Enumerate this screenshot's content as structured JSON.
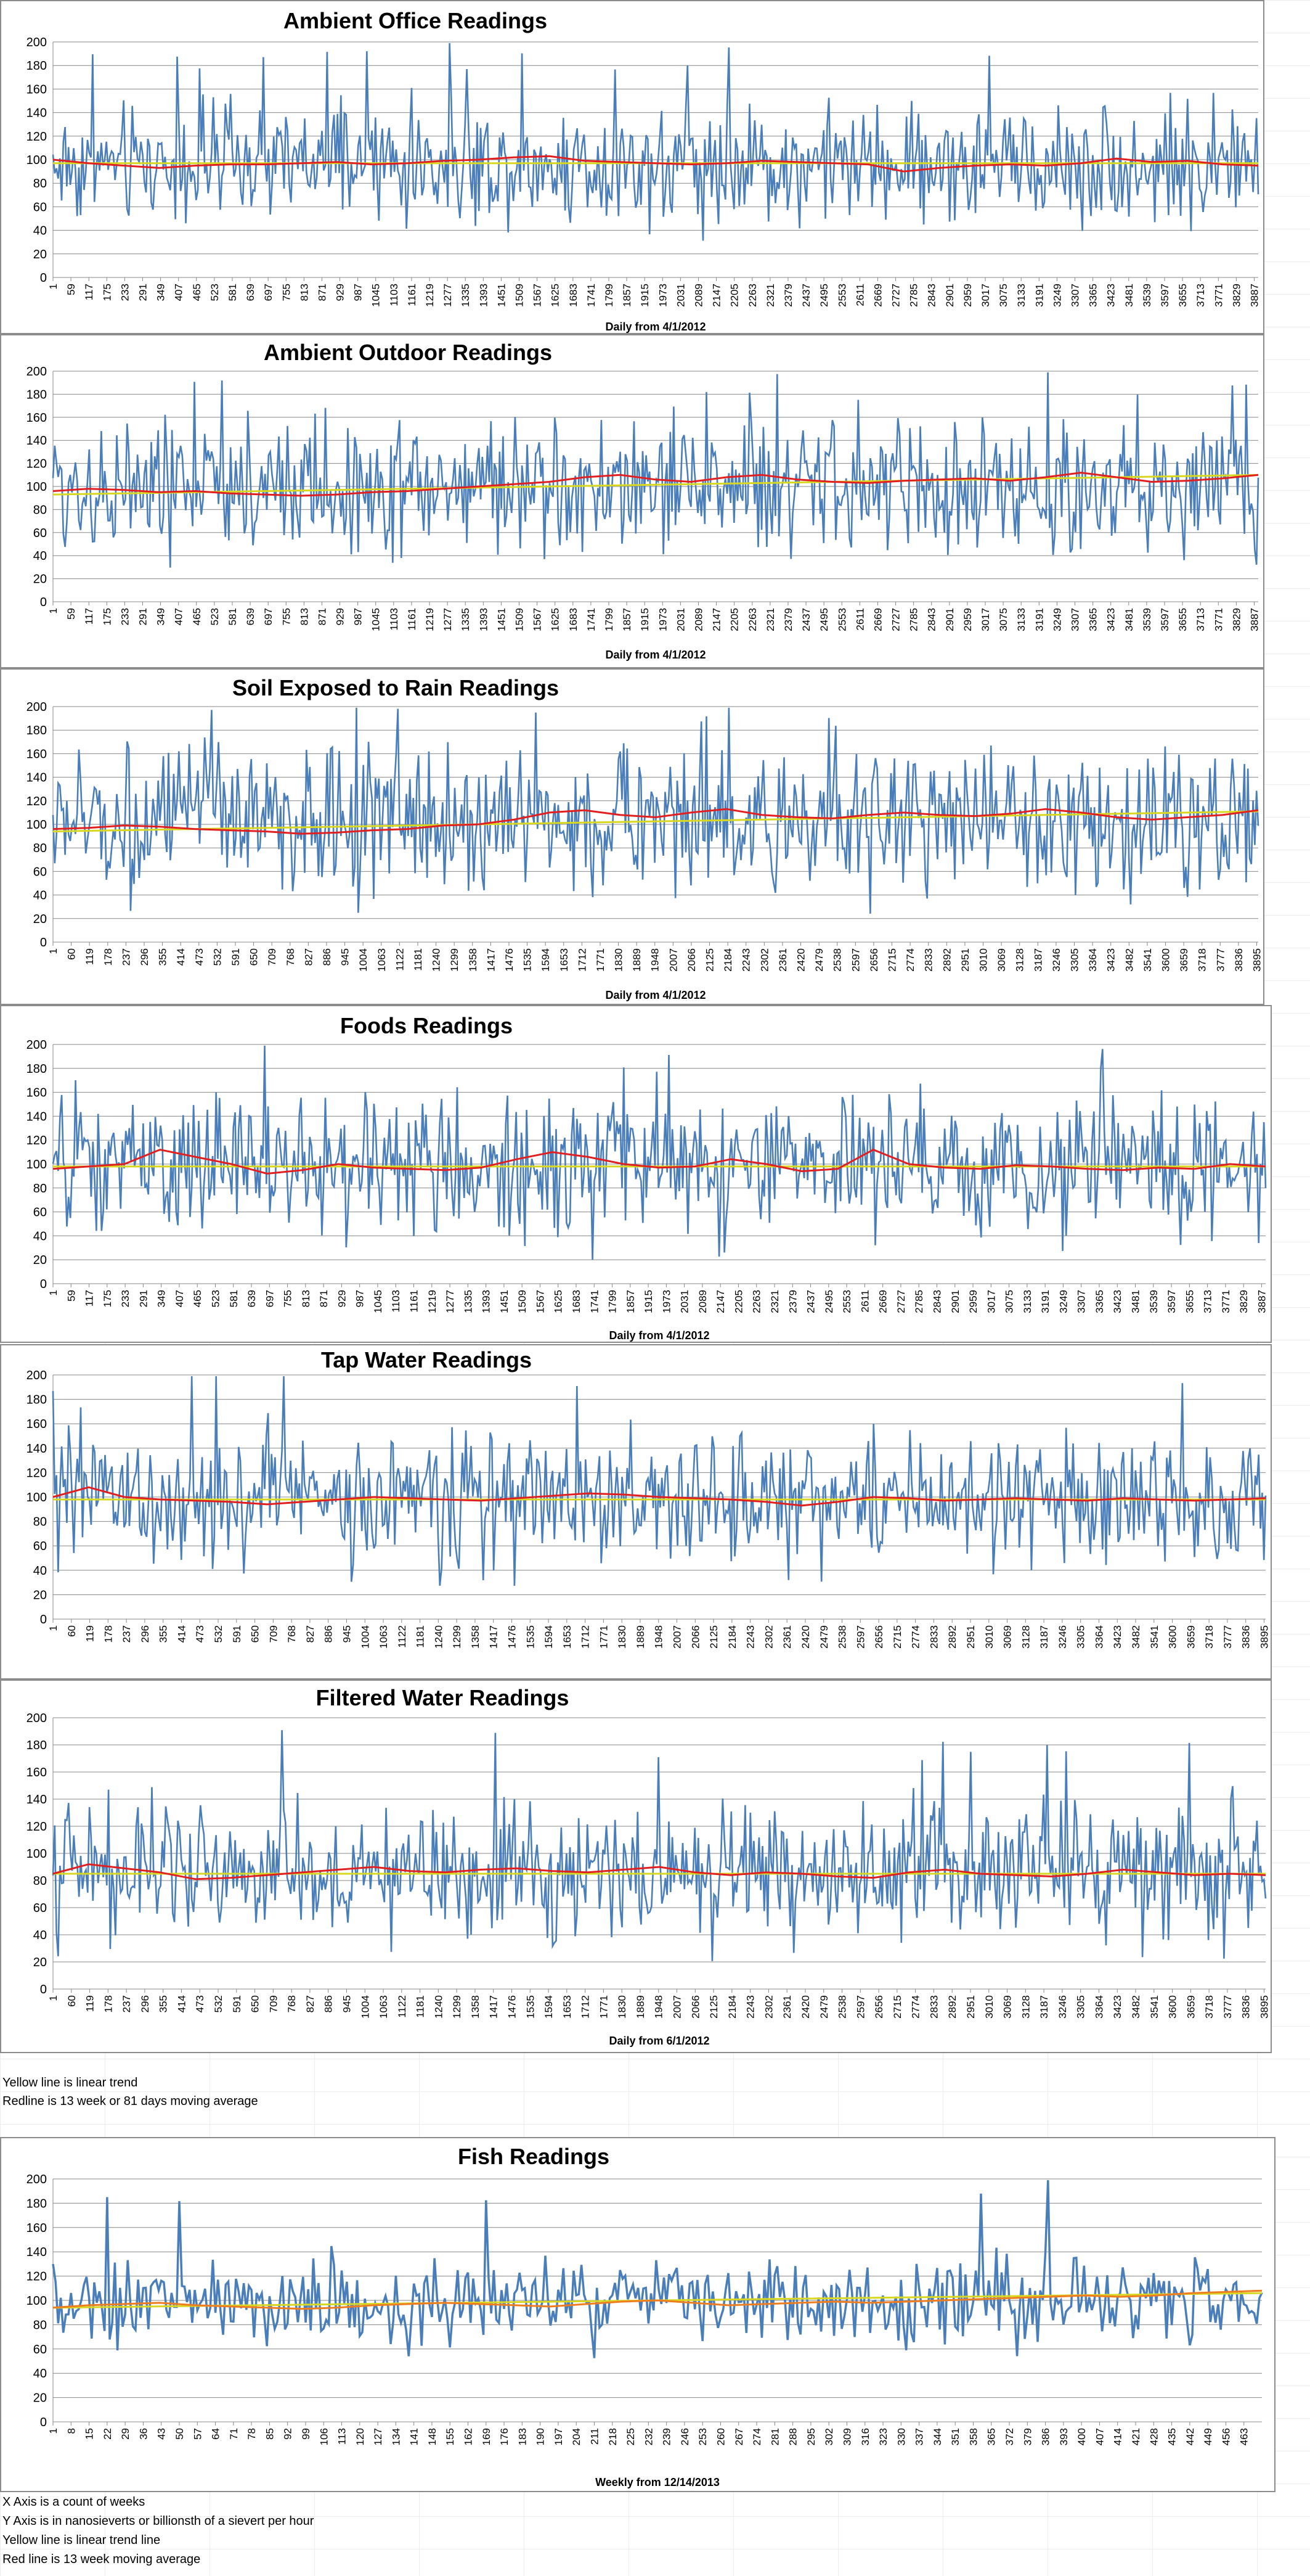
{
  "notes_mid": [
    "Yellow line is linear trend",
    "Redline is 13 week or 81 days moving average"
  ],
  "notes_bottom": [
    "X Axis is a count of weeks",
    "Y Axis is in nanosieverts or billionsth of a sievert per hour",
    "Yellow line is linear trend line",
    "Red line is 13 week moving average"
  ],
  "colors": {
    "series": "#4a7ebb",
    "moving_average": "#e02020",
    "moving_average_fish": "#ee7d20",
    "trend": "#d8d820",
    "grid": "#888888"
  },
  "chart_data": [
    {
      "type": "line",
      "title": "Ambient Office Readings",
      "xlabel": "Daily from 4/1/2012",
      "ylim": [
        0,
        200
      ],
      "yticks": [
        0,
        20,
        40,
        60,
        80,
        100,
        120,
        140,
        160,
        180,
        200
      ],
      "x_ticks": [
        1,
        59,
        117,
        175,
        233,
        291,
        349,
        407,
        465,
        523,
        581,
        639,
        697,
        755,
        813,
        871,
        929,
        987,
        1045,
        1103,
        1161,
        1219,
        1277,
        1335,
        1393,
        1451,
        1509,
        1567,
        1625,
        1683,
        1741,
        1799,
        1857,
        1915,
        1973,
        2031,
        2089,
        2147,
        2205,
        2263,
        2321,
        2379,
        2437,
        2495,
        2553,
        2611,
        2669,
        2727,
        2785,
        2843,
        2901,
        2959,
        3017,
        3075,
        3133,
        3191,
        3249,
        3307,
        3365,
        3423,
        3481,
        3539,
        3597,
        3655,
        3713,
        3771,
        3829,
        3887
      ],
      "x_max": 3900,
      "grid": true,
      "series": [
        {
          "role": "readings",
          "mean": 96,
          "spread": 22,
          "n": 700
        },
        {
          "role": "moving_average",
          "values": [
            100,
            97,
            95,
            93,
            95,
            96,
            96,
            97,
            98,
            96,
            97,
            99,
            100,
            102,
            103,
            99,
            98,
            97,
            96,
            97,
            99,
            98,
            97,
            96,
            90,
            93,
            95,
            96,
            95,
            97,
            101,
            98,
            99,
            96,
            95
          ]
        },
        {
          "role": "trend",
          "values": [
            97,
            97
          ]
        }
      ]
    },
    {
      "type": "line",
      "title": "Ambient Outdoor Readings",
      "xlabel": "Daily from 4/1/2012",
      "ylim": [
        0,
        200
      ],
      "yticks": [
        0,
        20,
        40,
        60,
        80,
        100,
        120,
        140,
        160,
        180,
        200
      ],
      "x_ticks": [
        1,
        59,
        117,
        175,
        233,
        291,
        349,
        407,
        465,
        523,
        581,
        639,
        697,
        755,
        813,
        871,
        929,
        987,
        1045,
        1103,
        1161,
        1219,
        1277,
        1335,
        1393,
        1451,
        1509,
        1567,
        1625,
        1683,
        1741,
        1799,
        1857,
        1915,
        1973,
        2031,
        2089,
        2147,
        2205,
        2263,
        2321,
        2379,
        2437,
        2495,
        2553,
        2611,
        2669,
        2727,
        2785,
        2843,
        2901,
        2959,
        3017,
        3075,
        3133,
        3191,
        3249,
        3307,
        3365,
        3423,
        3481,
        3539,
        3597,
        3655,
        3713,
        3771,
        3829,
        3887
      ],
      "x_max": 3900,
      "grid": true,
      "series": [
        {
          "role": "readings",
          "mean": 100,
          "spread": 26,
          "n": 700
        },
        {
          "role": "moving_average",
          "values": [
            96,
            98,
            97,
            95,
            96,
            94,
            93,
            92,
            93,
            95,
            96,
            98,
            100,
            102,
            104,
            108,
            110,
            106,
            104,
            108,
            110,
            106,
            104,
            103,
            105,
            106,
            107,
            105,
            108,
            112,
            108,
            104,
            105,
            107,
            110
          ]
        },
        {
          "role": "trend",
          "values": [
            93,
            110
          ]
        }
      ]
    },
    {
      "type": "line",
      "title": "Soil Exposed to Rain Readings",
      "xlabel": "Daily from 4/1/2012",
      "ylim": [
        0,
        200
      ],
      "yticks": [
        0,
        20,
        40,
        60,
        80,
        100,
        120,
        140,
        160,
        180,
        200
      ],
      "x_ticks": [
        1,
        60,
        119,
        178,
        237,
        296,
        355,
        414,
        473,
        532,
        591,
        650,
        709,
        768,
        827,
        886,
        945,
        1004,
        1063,
        1122,
        1181,
        1240,
        1299,
        1358,
        1417,
        1476,
        1535,
        1594,
        1653,
        1712,
        1771,
        1830,
        1889,
        1948,
        2007,
        2066,
        2125,
        2184,
        2243,
        2302,
        2361,
        2420,
        2479,
        2538,
        2597,
        2656,
        2715,
        2774,
        2833,
        2892,
        2951,
        3010,
        3069,
        3128,
        3187,
        3246,
        3305,
        3364,
        3423,
        3482,
        3541,
        3600,
        3659,
        3718,
        3777,
        3836,
        3895
      ],
      "x_max": 3900,
      "grid": true,
      "series": [
        {
          "role": "readings",
          "mean": 103,
          "spread": 27,
          "n": 700
        },
        {
          "role": "moving_average",
          "values": [
            96,
            97,
            99,
            98,
            96,
            95,
            94,
            92,
            93,
            95,
            96,
            99,
            100,
            104,
            110,
            112,
            108,
            106,
            110,
            113,
            108,
            106,
            105,
            108,
            110,
            108,
            107,
            109,
            113,
            110,
            106,
            104,
            106,
            108,
            112
          ]
        },
        {
          "role": "trend",
          "values": [
            94,
            111
          ]
        }
      ]
    },
    {
      "type": "line",
      "title": "Foods Readings",
      "xlabel": "Daily from 4/1/2012",
      "ylim": [
        0,
        200
      ],
      "yticks": [
        0,
        20,
        40,
        60,
        80,
        100,
        120,
        140,
        160,
        180,
        200
      ],
      "x_ticks": [
        1,
        59,
        117,
        175,
        233,
        291,
        349,
        407,
        465,
        523,
        581,
        639,
        697,
        755,
        813,
        871,
        929,
        987,
        1045,
        1103,
        1161,
        1219,
        1277,
        1335,
        1393,
        1451,
        1509,
        1567,
        1625,
        1683,
        1741,
        1799,
        1857,
        1915,
        1973,
        2031,
        2089,
        2147,
        2205,
        2263,
        2321,
        2379,
        2437,
        2495,
        2553,
        2611,
        2669,
        2727,
        2785,
        2843,
        2901,
        2959,
        3017,
        3075,
        3133,
        3191,
        3249,
        3307,
        3365,
        3423,
        3481,
        3539,
        3597,
        3655,
        3713,
        3771,
        3829,
        3887
      ],
      "x_max": 3900,
      "grid": true,
      "series": [
        {
          "role": "readings",
          "mean": 98,
          "spread": 26,
          "n": 700
        },
        {
          "role": "moving_average",
          "values": [
            96,
            98,
            100,
            112,
            106,
            100,
            92,
            95,
            100,
            97,
            96,
            95,
            97,
            104,
            110,
            106,
            100,
            97,
            98,
            104,
            100,
            94,
            96,
            112,
            100,
            97,
            96,
            99,
            98,
            96,
            95,
            97,
            96,
            100,
            98
          ]
        },
        {
          "role": "trend",
          "values": [
            98,
            98
          ]
        }
      ]
    },
    {
      "type": "line",
      "title": "Tap Water Readings",
      "xlabel": "",
      "ylim": [
        0,
        200
      ],
      "yticks": [
        0,
        20,
        40,
        60,
        80,
        100,
        120,
        140,
        160,
        180,
        200
      ],
      "x_ticks": [
        1,
        60,
        119,
        178,
        237,
        296,
        355,
        414,
        473,
        532,
        591,
        650,
        709,
        768,
        827,
        886,
        945,
        1004,
        1063,
        1122,
        1181,
        1240,
        1299,
        1358,
        1417,
        1476,
        1535,
        1594,
        1653,
        1712,
        1771,
        1830,
        1889,
        1948,
        2007,
        2066,
        2125,
        2184,
        2243,
        2302,
        2361,
        2420,
        2479,
        2538,
        2597,
        2656,
        2715,
        2774,
        2833,
        2892,
        2951,
        3010,
        3069,
        3128,
        3187,
        3246,
        3305,
        3364,
        3423,
        3482,
        3541,
        3600,
        3659,
        3718,
        3777,
        3836,
        3895
      ],
      "x_max": 3900,
      "grid": true,
      "series": [
        {
          "role": "readings",
          "mean": 98,
          "spread": 24,
          "n": 700
        },
        {
          "role": "moving_average",
          "values": [
            100,
            108,
            100,
            98,
            97,
            96,
            94,
            96,
            98,
            100,
            99,
            98,
            97,
            99,
            101,
            103,
            102,
            100,
            99,
            98,
            96,
            93,
            96,
            100,
            99,
            97,
            98,
            99,
            98,
            97,
            99,
            98,
            97,
            98,
            99
          ]
        },
        {
          "role": "trend",
          "values": [
            98,
            98
          ]
        }
      ]
    },
    {
      "type": "line",
      "title": "Filtered Water Readings",
      "xlabel": "Daily from 6/1/2012",
      "ylim": [
        0,
        200
      ],
      "yticks": [
        0,
        20,
        40,
        60,
        80,
        100,
        120,
        140,
        160,
        180,
        200
      ],
      "x_ticks": [
        1,
        60,
        119,
        178,
        237,
        296,
        355,
        414,
        473,
        532,
        591,
        650,
        709,
        768,
        827,
        886,
        945,
        1004,
        1063,
        1122,
        1181,
        1240,
        1299,
        1358,
        1417,
        1476,
        1535,
        1594,
        1653,
        1712,
        1771,
        1830,
        1889,
        1948,
        2007,
        2066,
        2125,
        2184,
        2243,
        2302,
        2361,
        2420,
        2479,
        2538,
        2597,
        2656,
        2715,
        2774,
        2833,
        2892,
        2951,
        3010,
        3069,
        3128,
        3187,
        3246,
        3305,
        3364,
        3423,
        3482,
        3541,
        3600,
        3659,
        3718,
        3777,
        3836,
        3895
      ],
      "x_max": 3900,
      "grid": true,
      "series": [
        {
          "role": "readings",
          "mean": 86,
          "spread": 22,
          "n": 700
        },
        {
          "role": "moving_average",
          "values": [
            85,
            92,
            89,
            86,
            81,
            82,
            84,
            86,
            88,
            90,
            87,
            86,
            88,
            89,
            87,
            86,
            88,
            90,
            86,
            84,
            86,
            85,
            83,
            82,
            86,
            88,
            85,
            84,
            83,
            85,
            88,
            86,
            84,
            85,
            84
          ]
        },
        {
          "role": "trend",
          "values": [
            85,
            85
          ]
        }
      ]
    },
    {
      "type": "line",
      "title": "Fish Readings",
      "xlabel": "Weekly from 12/14/2013",
      "ylim": [
        0,
        200
      ],
      "yticks": [
        0,
        20,
        40,
        60,
        80,
        100,
        120,
        140,
        160,
        180,
        200
      ],
      "x_ticks": [
        1,
        8,
        15,
        22,
        29,
        36,
        43,
        50,
        57,
        64,
        71,
        78,
        85,
        92,
        99,
        106,
        113,
        120,
        127,
        134,
        141,
        148,
        155,
        162,
        169,
        176,
        183,
        190,
        197,
        204,
        211,
        218,
        225,
        232,
        239,
        246,
        253,
        260,
        267,
        274,
        281,
        288,
        295,
        302,
        309,
        316,
        323,
        330,
        337,
        344,
        351,
        358,
        365,
        372,
        379,
        386,
        393,
        400,
        407,
        414,
        421,
        428,
        435,
        442,
        449,
        456,
        463
      ],
      "x_max": 470,
      "grid": true,
      "series": [
        {
          "role": "readings",
          "mean": 98,
          "spread": 16,
          "n": 470
        },
        {
          "role": "moving_average",
          "values": [
            94,
            96,
            97,
            98,
            96,
            95,
            94,
            93,
            94,
            96,
            97,
            98,
            97,
            96,
            95,
            97,
            99,
            100,
            98,
            96,
            97,
            98,
            99,
            98,
            99,
            100,
            101,
            102,
            103,
            104,
            103,
            104,
            106,
            107,
            108
          ]
        },
        {
          "role": "trend",
          "values": [
            94,
            106
          ]
        }
      ]
    }
  ]
}
